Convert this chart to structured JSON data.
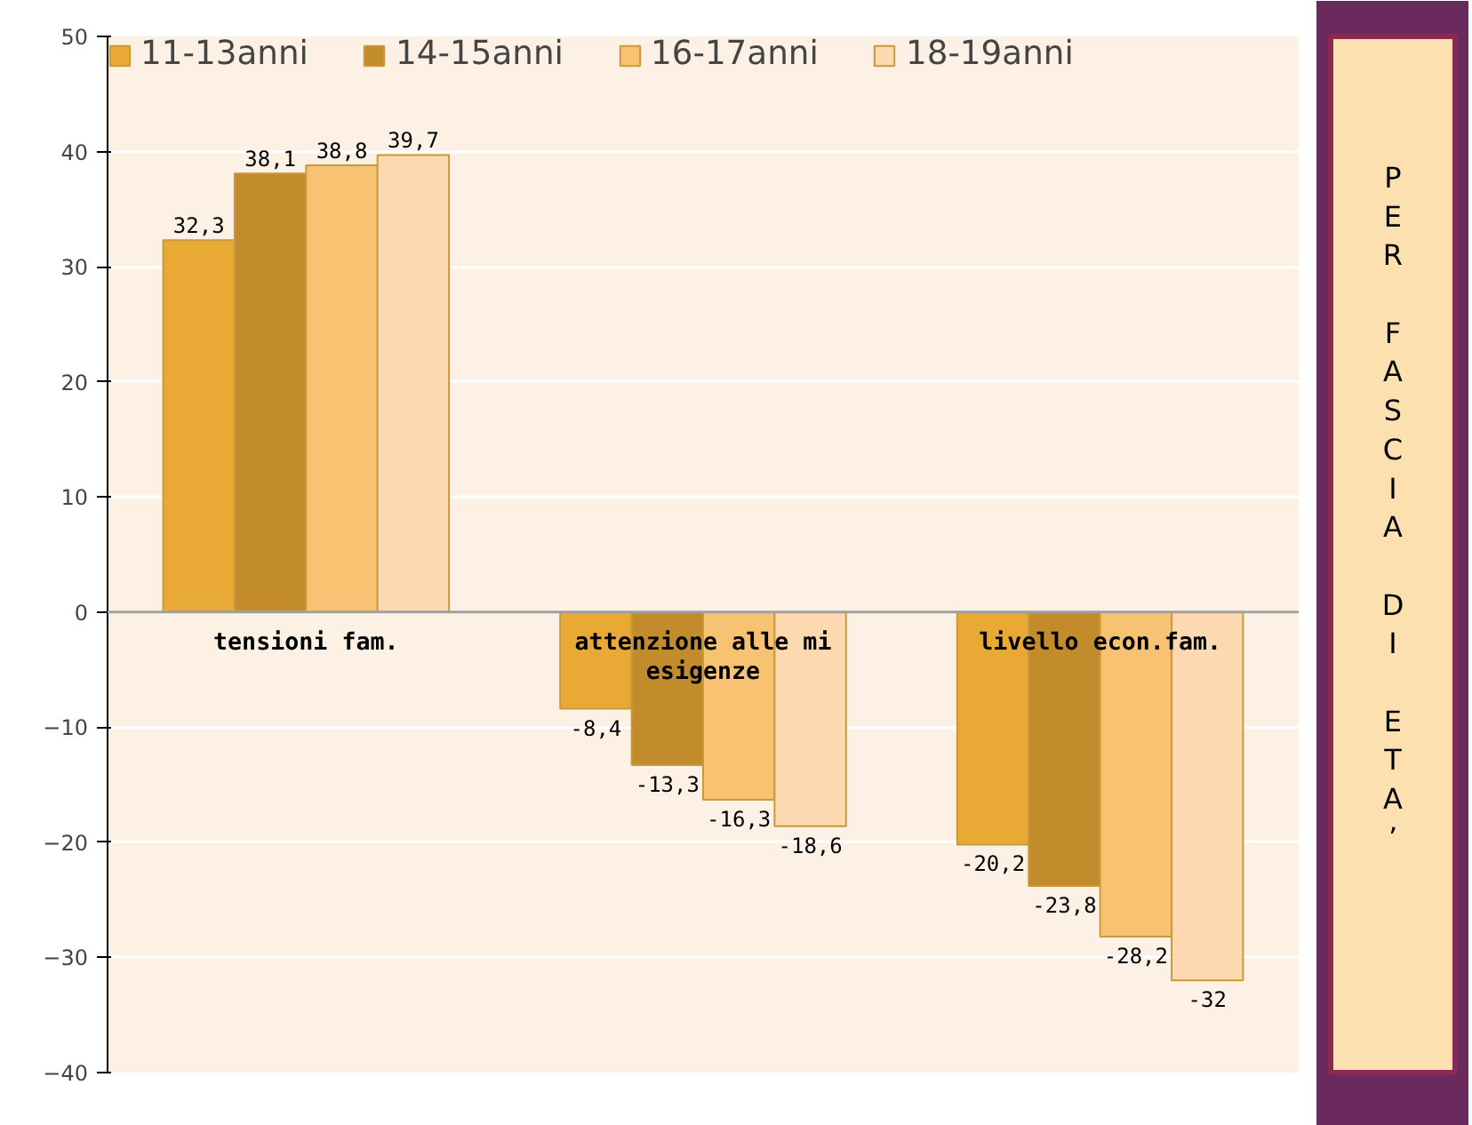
{
  "chart_data": {
    "type": "bar",
    "categories": [
      "tensioni fam.",
      "attenzione alle mi esigenze",
      "livello econ.fam."
    ],
    "series": [
      {
        "name": "11-13anni",
        "color": "#e8a935",
        "values": [
          32.3,
          -8.4,
          -20.2
        ],
        "value_labels": [
          "32,3",
          "-8,4",
          "-20,2"
        ]
      },
      {
        "name": "14-15anni",
        "color": "#c28b2c",
        "values": [
          38.1,
          -13.3,
          -23.8
        ],
        "value_labels": [
          "38,1",
          "-13,3",
          "-23,8"
        ]
      },
      {
        "name": "16-17anni",
        "color": "#f8c273",
        "values": [
          38.8,
          -16.3,
          -28.2
        ],
        "value_labels": [
          "38,8",
          "-16,3",
          "-28,2"
        ]
      },
      {
        "name": "18-19anni",
        "color": "#fcd9b1",
        "values": [
          39.7,
          -18.6,
          -32
        ],
        "value_labels": [
          "39,7",
          "-18,6",
          "-32"
        ]
      }
    ],
    "ylim": [
      -40,
      50
    ],
    "yticks": [
      -40,
      -30,
      -20,
      -10,
      0,
      10,
      20,
      30,
      40,
      50
    ],
    "grid": "y",
    "legend": "top",
    "annotations": [
      "PER FASCIA DI ETA’"
    ]
  }
}
